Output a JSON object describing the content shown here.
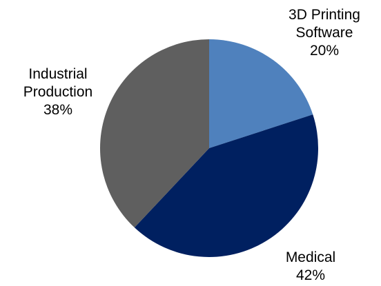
{
  "chart_data": {
    "type": "pie",
    "title": "",
    "start_angle_deg": 0,
    "direction": "clockwise",
    "slices": [
      {
        "label_lines": [
          "3D Printing",
          "Software"
        ],
        "percent_text": "20%",
        "value": 20,
        "color": "#4F81BD"
      },
      {
        "label_lines": [
          "Medical"
        ],
        "percent_text": "42%",
        "value": 42,
        "color": "#002060"
      },
      {
        "label_lines": [
          "Industrial",
          "Production"
        ],
        "percent_text": "38%",
        "value": 38,
        "color": "#5F5F5F"
      }
    ]
  }
}
